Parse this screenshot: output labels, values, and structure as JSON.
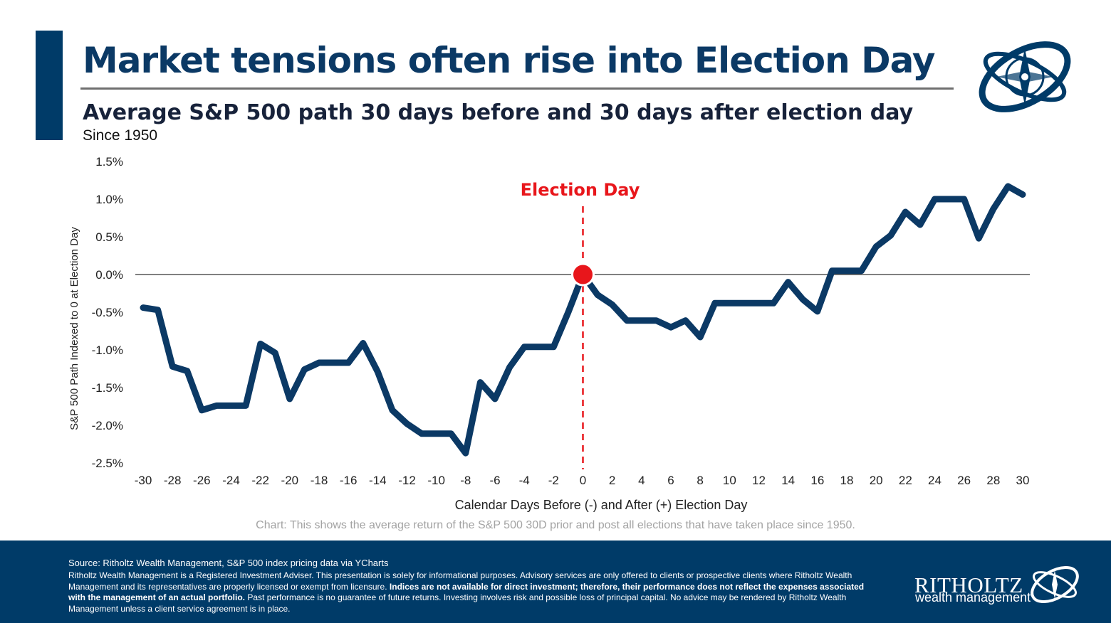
{
  "header": {
    "title": "Market tensions often rise into Election Day",
    "subtitle": "Average S&P 500 path 30 days before and 30 days after election day",
    "since": "Since 1950"
  },
  "colors": {
    "brand_navy": "#003b68",
    "line": "#0b3965",
    "election_red": "#e8161b",
    "caption_gray": "#a3a3a3"
  },
  "chart_data": {
    "type": "line",
    "xlabel": "Calendar Days Before (-) and After (+) Election Day",
    "ylabel": "S&P 500 Path Indexed to 0 at Election Day",
    "xlim": [
      -30,
      30
    ],
    "ylim": [
      -2.5,
      1.5
    ],
    "x_ticks": [
      -30,
      -28,
      -26,
      -24,
      -22,
      -20,
      -18,
      -16,
      -14,
      -12,
      -10,
      -8,
      -6,
      -4,
      -2,
      0,
      2,
      4,
      6,
      8,
      10,
      12,
      14,
      16,
      18,
      20,
      22,
      24,
      26,
      28,
      30
    ],
    "x_tick_labels": [
      "-30",
      "-28",
      "-26",
      "-24",
      "-22",
      "-20",
      "-18",
      "-16",
      "-14",
      "-12",
      "-10",
      "-8",
      "-6",
      "-4",
      "-2",
      "0",
      "2",
      "4",
      "6",
      "8",
      "10",
      "12",
      "14",
      "16",
      "18",
      "20",
      "22",
      "24",
      "26",
      "28",
      "30"
    ],
    "y_ticks": [
      1.5,
      1.0,
      0.5,
      0.0,
      -0.5,
      -1.0,
      -1.5,
      -2.0,
      -2.5
    ],
    "y_tick_labels": [
      "1.5%",
      "1.0%",
      "0.5%",
      "0.0%",
      "-0.5%",
      "-1.0%",
      "-1.5%",
      "-2.0%",
      "-2.5%"
    ],
    "grid": false,
    "legend": "none",
    "x": [
      -30,
      -29,
      -28,
      -27,
      -26,
      -25,
      -24,
      -23,
      -22,
      -21,
      -20,
      -19,
      -18,
      -17,
      -16,
      -15,
      -14,
      -13,
      -12,
      -11,
      -10,
      -9,
      -8,
      -7,
      -6,
      -5,
      -4,
      -3,
      -2,
      -1,
      0,
      1,
      2,
      3,
      4,
      5,
      6,
      7,
      8,
      9,
      10,
      11,
      12,
      13,
      14,
      15,
      16,
      17,
      18,
      19,
      20,
      21,
      22,
      23,
      24,
      25,
      26,
      27,
      28,
      29,
      30
    ],
    "values": [
      -0.44,
      -0.47,
      -1.22,
      -1.28,
      -1.8,
      -1.74,
      -1.74,
      -1.74,
      -0.92,
      -1.04,
      -1.65,
      -1.26,
      -1.17,
      -1.17,
      -1.17,
      -0.91,
      -1.29,
      -1.8,
      -1.98,
      -2.11,
      -2.11,
      -2.11,
      -2.37,
      -1.43,
      -1.65,
      -1.23,
      -0.96,
      -0.96,
      -0.96,
      -0.5,
      0.0,
      -0.27,
      -0.4,
      -0.61,
      -0.61,
      -0.61,
      -0.7,
      -0.61,
      -0.83,
      -0.38,
      -0.38,
      -0.38,
      -0.38,
      -0.38,
      -0.1,
      -0.33,
      -0.49,
      0.05,
      0.05,
      0.05,
      0.37,
      0.52,
      0.83,
      0.66,
      1.0,
      1.0,
      1.0,
      0.48,
      0.87,
      1.17,
      1.06
    ],
    "annotation": {
      "label": "Election Day",
      "x": 0,
      "y": 0.0
    },
    "caption": "Chart: This shows the average return of the S&P 500 30D prior and post all elections that have taken place since 1950."
  },
  "footer": {
    "source": "Source: Ritholtz Wealth Management, S&P 500 index pricing data via YCharts",
    "disclaimer_part1": "Ritholtz Wealth Management is a Registered Investment Adviser. This presentation is solely for informational purposes. Advisory services are only offered to clients or prospective clients where Ritholtz Wealth Management and its representatives are properly licensed or exempt from licensure.",
    "disclaimer_bold": "Indices are not available for direct investment; therefore, their performance does not reflect the expenses associated with the management of an actual portfolio.",
    "disclaimer_part2": "Past performance is no guarantee of future returns. Investing involves risk and possible loss of principal capital. No advice may be rendered by Ritholtz Wealth Management unless a client service agreement is in place.",
    "brand_name": "RITHOLTZ",
    "brand_sub": "wealth management"
  }
}
